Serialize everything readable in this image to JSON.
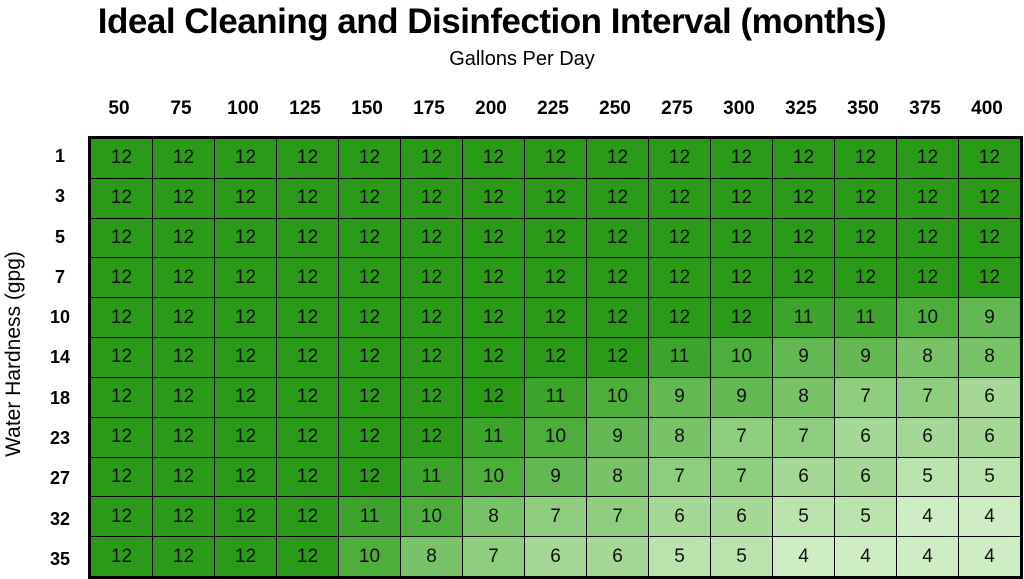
{
  "chart_data": {
    "type": "table",
    "title": "Ideal Cleaning and Disinfection Interval (months)",
    "xlabel": "Gallons Per Day",
    "ylabel": "Water Hardness (gpg)",
    "columns": [
      "50",
      "75",
      "100",
      "125",
      "150",
      "175",
      "200",
      "225",
      "250",
      "275",
      "300",
      "325",
      "350",
      "375",
      "400"
    ],
    "rows": [
      "1",
      "3",
      "5",
      "7",
      "10",
      "14",
      "18",
      "23",
      "27",
      "32",
      "35"
    ],
    "values": [
      [
        12,
        12,
        12,
        12,
        12,
        12,
        12,
        12,
        12,
        12,
        12,
        12,
        12,
        12,
        12
      ],
      [
        12,
        12,
        12,
        12,
        12,
        12,
        12,
        12,
        12,
        12,
        12,
        12,
        12,
        12,
        12
      ],
      [
        12,
        12,
        12,
        12,
        12,
        12,
        12,
        12,
        12,
        12,
        12,
        12,
        12,
        12,
        12
      ],
      [
        12,
        12,
        12,
        12,
        12,
        12,
        12,
        12,
        12,
        12,
        12,
        12,
        12,
        12,
        12
      ],
      [
        12,
        12,
        12,
        12,
        12,
        12,
        12,
        12,
        12,
        12,
        12,
        11,
        11,
        10,
        9
      ],
      [
        12,
        12,
        12,
        12,
        12,
        12,
        12,
        12,
        12,
        11,
        10,
        9,
        9,
        8,
        8
      ],
      [
        12,
        12,
        12,
        12,
        12,
        12,
        12,
        11,
        10,
        9,
        9,
        8,
        7,
        7,
        6
      ],
      [
        12,
        12,
        12,
        12,
        12,
        12,
        11,
        10,
        9,
        8,
        7,
        7,
        6,
        6,
        6
      ],
      [
        12,
        12,
        12,
        12,
        12,
        11,
        10,
        9,
        8,
        7,
        7,
        6,
        6,
        5,
        5
      ],
      [
        12,
        12,
        12,
        12,
        11,
        10,
        8,
        7,
        7,
        6,
        6,
        5,
        5,
        4,
        4
      ],
      [
        12,
        12,
        12,
        12,
        10,
        8,
        7,
        6,
        6,
        5,
        5,
        4,
        4,
        4,
        4
      ]
    ],
    "colors": {
      "12": "#2a9a18",
      "11": "#3da42b",
      "10": "#4eae3c",
      "9": "#63b853",
      "8": "#78c268",
      "7": "#8fcd7f",
      "6": "#a5d896",
      "5": "#bbe3ae",
      "4": "#cfedc5"
    }
  }
}
